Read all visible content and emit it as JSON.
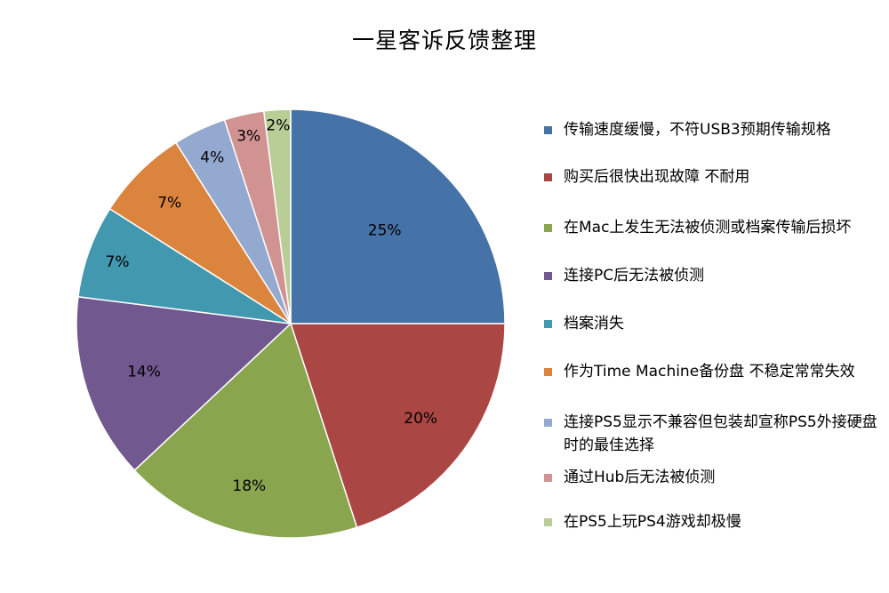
{
  "chart_data": {
    "type": "pie",
    "title": "一星客诉反馈整理",
    "start_angle": "12 o'clock, clockwise",
    "legend_position": "right",
    "slices": [
      {
        "name": "传输速度缓慢，不符USB3预期传输规格",
        "value": 25,
        "label": "25%",
        "color": "#4572A7"
      },
      {
        "name": "购买后很快出现故障 不耐用",
        "value": 20,
        "label": "20%",
        "color": "#AA4643"
      },
      {
        "name": "在Mac上发生无法被侦测或档案传输后损坏",
        "value": 18,
        "label": "18%",
        "color": "#89A54E"
      },
      {
        "name": "连接PC后无法被侦测",
        "value": 14,
        "label": "14%",
        "color": "#71588F"
      },
      {
        "name": "档案消失",
        "value": 7,
        "label": "7%",
        "color": "#4198AF"
      },
      {
        "name": "作为Time Machine备份盘 不稳定常常失效",
        "value": 7,
        "label": "7%",
        "color": "#DB843D"
      },
      {
        "name": "连接PS5显示不兼容但包装却宣称PS5外接硬盘时的最佳选择",
        "value": 4,
        "label": "4%",
        "color": "#93A9CF"
      },
      {
        "name": "通过Hub后无法被侦测",
        "value": 3,
        "label": "3%",
        "color": "#D19392"
      },
      {
        "name": "在PS5上玩PS4游戏却极慢",
        "value": 2,
        "label": "2%",
        "color": "#B9CD96"
      }
    ]
  }
}
